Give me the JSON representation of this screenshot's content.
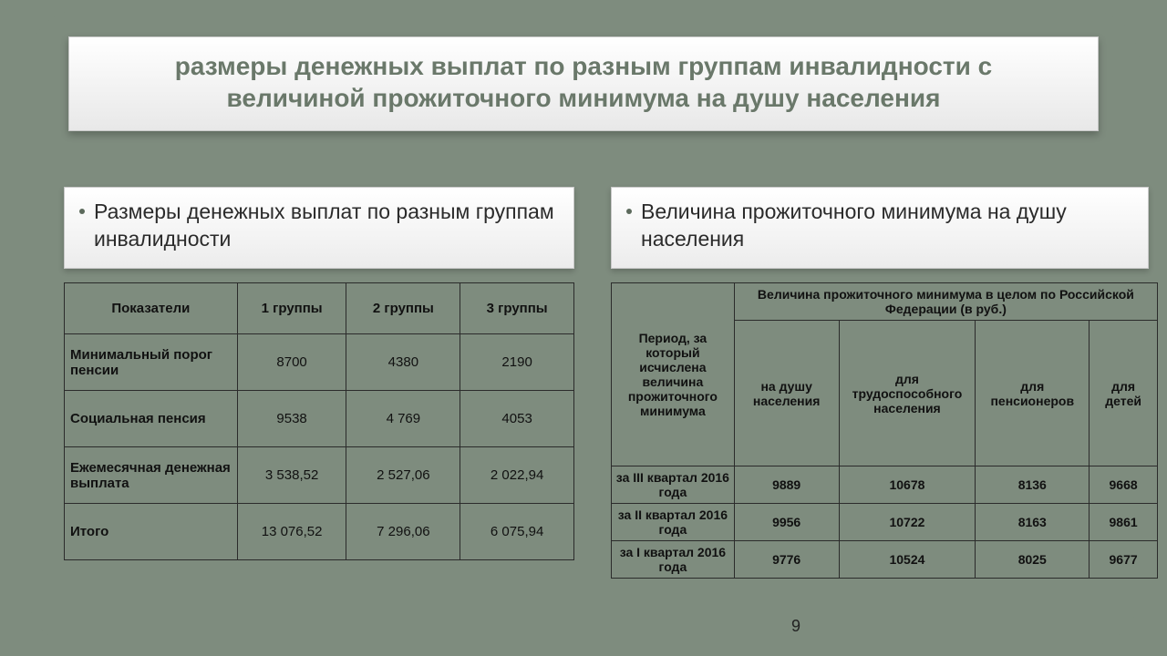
{
  "colors": {
    "slide_bg": "#7e8c7e",
    "box_grad_top": "#ffffff",
    "box_grad_bot": "#e8e8e8",
    "title_text": "#6a786a",
    "border": "#2b2b2b"
  },
  "header": {
    "line1": "размеры денежных выплат по разным группам инвалидности с",
    "line2": "величиной прожиточного минимума на душу населения"
  },
  "panel_left": {
    "text": "Размеры денежных выплат по разным группам инвалидности"
  },
  "panel_right": {
    "text": "Величина прожиточного минимума на душу населения"
  },
  "tbl_left": {
    "headers": [
      "Показатели",
      "1 группы",
      "2 группы",
      "3 группы"
    ],
    "rows": [
      {
        "label": "Минимальный порог пенсии",
        "v": [
          "8700",
          "4380",
          "2190"
        ]
      },
      {
        "label": "Социальная пенсия",
        "v": [
          "9538",
          "4 769",
          "4053"
        ]
      },
      {
        "label": "Ежемесячная денежная выплата",
        "v": [
          "3 538,52",
          "2 527,06",
          "2 022,94"
        ]
      },
      {
        "label": "Итого",
        "v": [
          "13 076,52",
          "7 296,06",
          "6 075,94"
        ]
      }
    ]
  },
  "tbl_right": {
    "period_header": "Период, за который исчислена величина прожиточного минимума",
    "group_header": "Величина прожиточного минимума в целом по Российской Федерации (в руб.)",
    "sub_headers": [
      "на душу населения",
      "для трудоспособного населения",
      "для пенсионеров",
      "для детей"
    ],
    "rows": [
      {
        "label": "за III квартал 2016 года",
        "v": [
          "9889",
          "10678",
          "8136",
          "9668"
        ]
      },
      {
        "label": "за II квартал 2016 года",
        "v": [
          "9956",
          "10722",
          "8163",
          "9861"
        ]
      },
      {
        "label": "за I квартал  2016 года",
        "v": [
          "9776",
          "10524",
          "8025",
          "9677"
        ]
      }
    ]
  },
  "pagenum": "9"
}
